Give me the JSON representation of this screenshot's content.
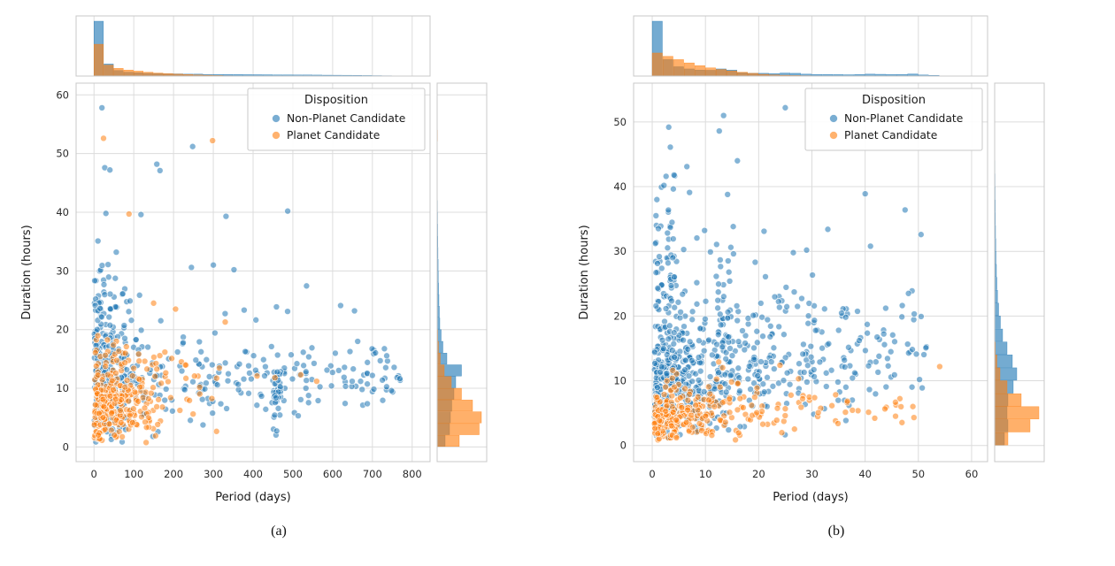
{
  "page": {
    "background": "#ffffff"
  },
  "colors": {
    "non_planet": "#1f77b4",
    "planet": "#ff7f0e",
    "grid": "#dcdcdc",
    "spine": "#c8c8c8",
    "text": "#2b2b2b",
    "label": "#1a1a1a",
    "legend_border": "#c9c9c9"
  },
  "figures": [
    {
      "caption": "(a)"
    },
    {
      "caption": "(b)"
    }
  ],
  "chart_data": [
    {
      "type": "scatter",
      "subtype": "jointplot_scatter_with_marginal_histograms",
      "caption": "(a)",
      "xlabel": "Period (days)",
      "ylabel": "Duration (hours)",
      "xlim": [
        -45,
        845
      ],
      "ylim": [
        -2.5,
        62
      ],
      "xticks": [
        0,
        100,
        200,
        300,
        400,
        500,
        600,
        700,
        800
      ],
      "yticks": [
        0,
        10,
        20,
        30,
        40,
        50,
        60
      ],
      "grid": true,
      "legend": {
        "title": "Disposition",
        "position": "upper right",
        "entries": [
          {
            "label": "Non-Planet Candidate",
            "color": "#1f77b4"
          },
          {
            "label": "Planet Candidate",
            "color": "#ff7f0e"
          }
        ]
      },
      "series": [
        {
          "name": "Non-Planet Candidate",
          "color": "#1f77b4",
          "seed": 11,
          "clusters": [
            {
              "n": 230,
              "x": {
                "dist": "exp",
                "min": 1,
                "max": 420,
                "scale": 55
              },
              "y": {
                "dist": "norm",
                "mean": 11,
                "sd": 5.5,
                "min": 0.8,
                "max": 29
              }
            },
            {
              "n": 150,
              "x": {
                "dist": "uniform",
                "min": 60,
                "max": 770
              },
              "y": {
                "dist": "norm",
                "mean": 11.5,
                "sd": 2.8,
                "min": 4,
                "max": 20
              }
            },
            {
              "n": 55,
              "x": {
                "dist": "exp",
                "min": 1,
                "max": 260,
                "scale": 35
              },
              "y": {
                "dist": "norm",
                "mean": 22,
                "sd": 4.5,
                "min": 15,
                "max": 33
              }
            },
            {
              "n": 25,
              "x": {
                "dist": "uniform",
                "min": 250,
                "max": 550
              },
              "y": {
                "dist": "norm",
                "mean": 14,
                "sd": 6,
                "min": 5,
                "max": 31
              }
            },
            {
              "n": 35,
              "x": {
                "dist": "uniform",
                "min": 450,
                "max": 470
              },
              "y": {
                "dist": "norm",
                "mean": 9,
                "sd": 4,
                "min": 1.5,
                "max": 17
              }
            }
          ],
          "outliers": [
            [
              20,
              57.8
            ],
            [
              27,
              47.6
            ],
            [
              40,
              47.2
            ],
            [
              158,
              48.2
            ],
            [
              166,
              47.1
            ],
            [
              248,
              51.2
            ],
            [
              30,
              39.8
            ],
            [
              118,
              39.6
            ],
            [
              332,
              39.3
            ],
            [
              487,
              40.2
            ],
            [
              10,
              35.1
            ],
            [
              56,
              33.2
            ],
            [
              300,
              31
            ],
            [
              352,
              30.2
            ],
            [
              245,
              30.6
            ],
            [
              620,
              24.1
            ],
            [
              655,
              23.2
            ],
            [
              700,
              12.2
            ],
            [
              725,
              11.4
            ],
            [
              748,
              9.6
            ]
          ]
        },
        {
          "name": "Planet Candidate",
          "color": "#ff7f0e",
          "seed": 22,
          "clusters": [
            {
              "n": 260,
              "x": {
                "dist": "exp",
                "min": 1,
                "max": 360,
                "scale": 70
              },
              "y": {
                "dist": "norm",
                "mean": 7,
                "sd": 3.2,
                "min": 0.6,
                "max": 16
              }
            },
            {
              "n": 45,
              "x": {
                "dist": "exp",
                "min": 2,
                "max": 330,
                "scale": 90
              },
              "y": {
                "dist": "norm",
                "mean": 14.5,
                "sd": 2.5,
                "min": 10,
                "max": 21
              }
            }
          ],
          "outliers": [
            [
              24,
              52.6
            ],
            [
              298,
              52.2
            ],
            [
              88,
              39.7
            ],
            [
              150,
              24.5
            ],
            [
              205,
              23.5
            ],
            [
              330,
              21.3
            ],
            [
              410,
              12.1
            ],
            [
              455,
              11.8
            ],
            [
              520,
              12.3
            ],
            [
              560,
              11.2
            ]
          ]
        }
      ],
      "marginal_top": {
        "bin_start": 0,
        "bin_width": 25,
        "series": [
          {
            "name": "Non-Planet Candidate",
            "color": "#1f77b4",
            "heights": [
              1.0,
              0.22,
              0.1,
              0.07,
              0.06,
              0.05,
              0.045,
              0.04,
              0.04,
              0.035,
              0.035,
              0.03,
              0.03,
              0.03,
              0.028,
              0.026,
              0.025,
              0.024,
              0.022,
              0.022,
              0.02,
              0.02,
              0.018,
              0.016,
              0.015,
              0.014,
              0.012,
              0.01,
              0.008,
              0.006,
              0.004,
              0.002
            ]
          },
          {
            "name": "Planet Candidate",
            "color": "#ff7f0e",
            "heights": [
              0.58,
              0.2,
              0.14,
              0.11,
              0.09,
              0.07,
              0.055,
              0.045,
              0.035,
              0.028,
              0.02,
              0.015,
              0.01,
              0.006,
              0.003,
              0.002,
              0.001,
              0.001,
              0,
              0,
              0,
              0,
              0,
              0,
              0,
              0,
              0,
              0,
              0,
              0,
              0,
              0
            ]
          }
        ]
      },
      "marginal_right": {
        "bin_start": 0,
        "bin_width": 2,
        "series": [
          {
            "name": "Non-Planet Candidate",
            "color": "#1f77b4",
            "heights": [
              0.18,
              0.28,
              0.3,
              0.33,
              0.38,
              0.42,
              0.55,
              0.22,
              0.13,
              0.09,
              0.06,
              0.05,
              0.04,
              0.032,
              0.026,
              0.022,
              0.018,
              0.015,
              0.012,
              0.01,
              0.008,
              0.006,
              0.005,
              0.004,
              0.003,
              0.002,
              0.002,
              0.001,
              0.004,
              0.001
            ]
          },
          {
            "name": "Planet Candidate",
            "color": "#ff7f0e",
            "heights": [
              0.5,
              0.95,
              1.0,
              0.8,
              0.55,
              0.32,
              0.16,
              0.07,
              0.03,
              0.012,
              0.005,
              0.002,
              0.001,
              0,
              0,
              0,
              0,
              0,
              0,
              0,
              0,
              0,
              0,
              0,
              0,
              0,
              0.008,
              0,
              0,
              0
            ]
          }
        ]
      }
    },
    {
      "type": "scatter",
      "subtype": "jointplot_scatter_with_marginal_histograms",
      "caption": "(b)",
      "xlabel": "Period (days)",
      "ylabel": "Duration (hours)",
      "xlim": [
        -3.5,
        63
      ],
      "ylim": [
        -2.5,
        56
      ],
      "xticks": [
        0,
        10,
        20,
        30,
        40,
        50,
        60
      ],
      "yticks": [
        0,
        10,
        20,
        30,
        40,
        50
      ],
      "grid": true,
      "legend": {
        "title": "Disposition",
        "position": "upper right",
        "entries": [
          {
            "label": "Non-Planet Candidate",
            "color": "#1f77b4"
          },
          {
            "label": "Planet Candidate",
            "color": "#ff7f0e"
          }
        ]
      },
      "series": [
        {
          "name": "Non-Planet Candidate",
          "color": "#1f77b4",
          "seed": 33,
          "clusters": [
            {
              "n": 420,
              "x": {
                "dist": "exp",
                "min": 0.4,
                "max": 52,
                "scale": 9
              },
              "y": {
                "dist": "norm",
                "mean": 10.5,
                "sd": 4.5,
                "min": 1.2,
                "max": 21.5
              }
            },
            {
              "n": 110,
              "x": {
                "dist": "uniform",
                "min": 18,
                "max": 52
              },
              "y": {
                "dist": "norm",
                "mean": 13,
                "sd": 5,
                "min": 3,
                "max": 28
              }
            },
            {
              "n": 60,
              "x": {
                "dist": "exp",
                "min": 0.4,
                "max": 16,
                "scale": 3.5
              },
              "y": {
                "dist": "norm",
                "mean": 26,
                "sd": 6,
                "min": 17.5,
                "max": 42
              }
            },
            {
              "n": 40,
              "x": {
                "dist": "uniform",
                "min": 0.4,
                "max": 52
              },
              "y": {
                "dist": "norm",
                "mean": 20,
                "sd": 3,
                "min": 15,
                "max": 31
              }
            },
            {
              "n": 40,
              "x": {
                "dist": "uniform",
                "min": 12,
                "max": 15
              },
              "y": {
                "dist": "norm",
                "mean": 18,
                "sd": 9,
                "min": 2,
                "max": 40
              }
            },
            {
              "n": 30,
              "x": {
                "dist": "uniform",
                "min": 2.5,
                "max": 4.5
              },
              "y": {
                "dist": "norm",
                "mean": 25,
                "sd": 8,
                "min": 5,
                "max": 42
              }
            }
          ],
          "outliers": [
            [
              25,
              52.2
            ],
            [
              13.4,
              51
            ],
            [
              12.6,
              48.6
            ],
            [
              3.1,
              49.2
            ],
            [
              3.4,
              46.1
            ],
            [
              16,
              44
            ],
            [
              2.6,
              41.6
            ],
            [
              2.2,
              40.2
            ],
            [
              4.1,
              41.8
            ],
            [
              40,
              38.9
            ],
            [
              47.5,
              36.4
            ],
            [
              33,
              33.4
            ],
            [
              50.5,
              32.6
            ],
            [
              41,
              30.8
            ],
            [
              29,
              30.2
            ],
            [
              6.5,
              43.1
            ],
            [
              7,
              39.1
            ],
            [
              21,
              33.1
            ],
            [
              26.5,
              29.8
            ]
          ]
        },
        {
          "name": "Planet Candidate",
          "color": "#ff7f0e",
          "seed": 44,
          "clusters": [
            {
              "n": 230,
              "x": {
                "dist": "exp",
                "min": 0.4,
                "max": 28,
                "scale": 5.5
              },
              "y": {
                "dist": "norm",
                "mean": 4.3,
                "sd": 1.7,
                "min": 0.8,
                "max": 8.5
              }
            },
            {
              "n": 50,
              "x": {
                "dist": "uniform",
                "min": 10,
                "max": 50
              },
              "y": {
                "dist": "norm",
                "mean": 5.5,
                "sd": 1.8,
                "min": 2.5,
                "max": 9.5
              }
            },
            {
              "n": 25,
              "x": {
                "dist": "exp",
                "min": 1,
                "max": 30,
                "scale": 8
              },
              "y": {
                "dist": "norm",
                "mean": 9,
                "sd": 1.5,
                "min": 7,
                "max": 12.5
              }
            }
          ],
          "outliers": [
            [
              54,
              12.2
            ],
            [
              24,
              12.4
            ],
            [
              12.5,
              12.9
            ],
            [
              30.5,
              7.4
            ]
          ]
        }
      ],
      "marginal_top": {
        "bin_start": 0,
        "bin_width": 2,
        "series": [
          {
            "name": "Non-Planet Candidate",
            "color": "#1f77b4",
            "heights": [
              1.0,
              0.3,
              0.17,
              0.13,
              0.11,
              0.105,
              0.13,
              0.11,
              0.06,
              0.05,
              0.05,
              0.045,
              0.055,
              0.05,
              0.035,
              0.03,
              0.03,
              0.027,
              0.024,
              0.03,
              0.035,
              0.032,
              0.028,
              0.03,
              0.038,
              0.02,
              0.012,
              0.004,
              0,
              0
            ]
          },
          {
            "name": "Planet Candidate",
            "color": "#ff7f0e",
            "heights": [
              0.42,
              0.36,
              0.3,
              0.24,
              0.19,
              0.15,
              0.12,
              0.095,
              0.07,
              0.05,
              0.032,
              0.022,
              0.015,
              0.01,
              0.007,
              0.005,
              0.004,
              0.003,
              0.002,
              0.002,
              0.0015,
              0.001,
              0.001,
              0.001,
              0.002,
              0.001,
              0.001,
              0.001,
              0,
              0
            ]
          }
        ]
      },
      "marginal_right": {
        "bin_start": 0,
        "bin_width": 2,
        "series": [
          {
            "name": "Non-Planet Candidate",
            "color": "#1f77b4",
            "heights": [
              0.22,
              0.3,
              0.28,
              0.3,
              0.42,
              0.5,
              0.4,
              0.28,
              0.18,
              0.13,
              0.09,
              0.065,
              0.05,
              0.04,
              0.03,
              0.026,
              0.02,
              0.017,
              0.014,
              0.011,
              0.009,
              0.007,
              0.005,
              0.004,
              0.003,
              0.002,
              0.002,
              0.001
            ]
          },
          {
            "name": "Planet Candidate",
            "color": "#ff7f0e",
            "heights": [
              0.3,
              0.8,
              1.0,
              0.6,
              0.28,
              0.12,
              0.05,
              0.015,
              0.005,
              0.002,
              0.001,
              0,
              0,
              0,
              0,
              0,
              0,
              0,
              0,
              0,
              0,
              0,
              0,
              0,
              0,
              0,
              0,
              0
            ]
          }
        ]
      }
    }
  ]
}
